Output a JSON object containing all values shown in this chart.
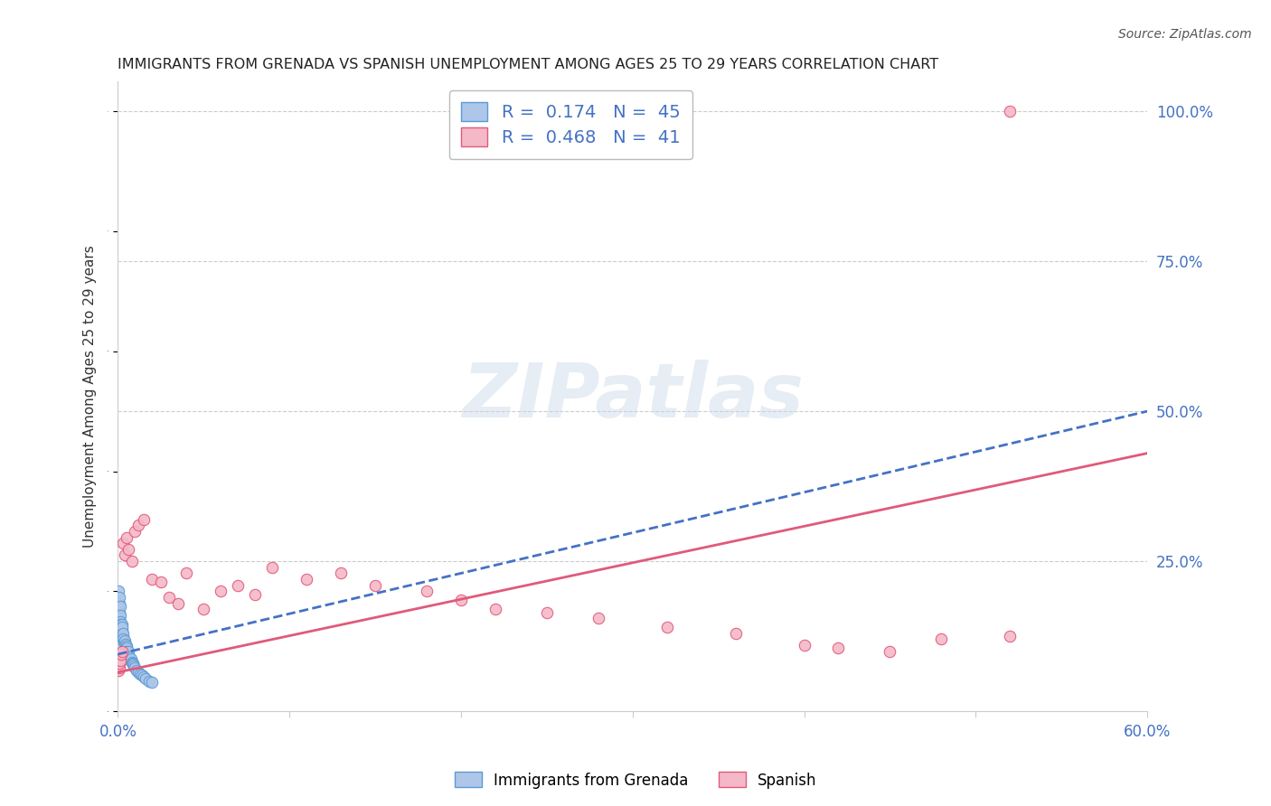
{
  "title": "IMMIGRANTS FROM GRENADA VS SPANISH UNEMPLOYMENT AMONG AGES 25 TO 29 YEARS CORRELATION CHART",
  "source": "Source: ZipAtlas.com",
  "ylabel": "Unemployment Among Ages 25 to 29 years",
  "xlim": [
    0.0,
    0.6
  ],
  "ylim": [
    0.0,
    1.05
  ],
  "xticks": [
    0.0,
    0.1,
    0.2,
    0.3,
    0.4,
    0.5,
    0.6
  ],
  "xtick_labels": [
    "0.0%",
    "",
    "",
    "",
    "",
    "",
    "60.0%"
  ],
  "yticks": [
    0.0,
    0.25,
    0.5,
    0.75,
    1.0
  ],
  "ytick_labels": [
    "",
    "25.0%",
    "50.0%",
    "75.0%",
    "100.0%"
  ],
  "background_color": "#ffffff",
  "grid_color": "#cccccc",
  "watermark_text": "ZIPatlas",
  "grenada_color": "#aec6e8",
  "grenada_edge_color": "#5b9bd5",
  "spanish_color": "#f4b8c8",
  "spanish_edge_color": "#e05a7a",
  "trend_grenada_color": "#4472c4",
  "trend_spanish_color": "#e05a7a",
  "R_grenada": 0.174,
  "N_grenada": 45,
  "R_spanish": 0.468,
  "N_spanish": 41,
  "legend_R_color": "#4472c4",
  "title_color": "#222222",
  "ylabel_color": "#333333",
  "source_color": "#555555",
  "tick_label_color": "#4472c4",
  "grenada_x": [
    0.0003,
    0.0005,
    0.0007,
    0.0008,
    0.001,
    0.001,
    0.0012,
    0.0013,
    0.0015,
    0.0015,
    0.0017,
    0.0018,
    0.002,
    0.002,
    0.0022,
    0.0023,
    0.0025,
    0.0028,
    0.003,
    0.0032,
    0.0035,
    0.004,
    0.0042,
    0.0045,
    0.0048,
    0.005,
    0.0053,
    0.0055,
    0.006,
    0.0065,
    0.007,
    0.0075,
    0.008,
    0.0085,
    0.009,
    0.0095,
    0.01,
    0.011,
    0.012,
    0.013,
    0.014,
    0.015,
    0.016,
    0.018,
    0.02
  ],
  "grenada_y": [
    0.2,
    0.17,
    0.165,
    0.18,
    0.19,
    0.155,
    0.175,
    0.16,
    0.15,
    0.145,
    0.14,
    0.135,
    0.14,
    0.13,
    0.135,
    0.145,
    0.14,
    0.125,
    0.13,
    0.12,
    0.115,
    0.118,
    0.11,
    0.112,
    0.108,
    0.105,
    0.1,
    0.095,
    0.1,
    0.09,
    0.085,
    0.088,
    0.082,
    0.08,
    0.078,
    0.075,
    0.072,
    0.068,
    0.065,
    0.062,
    0.06,
    0.058,
    0.055,
    0.05,
    0.048
  ],
  "spanish_x": [
    0.0003,
    0.0005,
    0.0008,
    0.001,
    0.0015,
    0.002,
    0.0025,
    0.003,
    0.004,
    0.005,
    0.006,
    0.008,
    0.01,
    0.012,
    0.015,
    0.02,
    0.025,
    0.03,
    0.035,
    0.04,
    0.05,
    0.06,
    0.07,
    0.08,
    0.09,
    0.11,
    0.13,
    0.15,
    0.18,
    0.2,
    0.22,
    0.25,
    0.28,
    0.32,
    0.36,
    0.4,
    0.42,
    0.45,
    0.48,
    0.52,
    0.52
  ],
  "spanish_y": [
    0.075,
    0.068,
    0.072,
    0.08,
    0.085,
    0.095,
    0.1,
    0.28,
    0.26,
    0.29,
    0.27,
    0.25,
    0.3,
    0.31,
    0.32,
    0.22,
    0.215,
    0.19,
    0.18,
    0.23,
    0.17,
    0.2,
    0.21,
    0.195,
    0.24,
    0.22,
    0.23,
    0.21,
    0.2,
    0.185,
    0.17,
    0.165,
    0.155,
    0.14,
    0.13,
    0.11,
    0.105,
    0.1,
    0.12,
    0.125,
    1.0
  ],
  "trend_grenada_x_start": 0.0,
  "trend_grenada_x_end": 0.6,
  "trend_grenada_y_start": 0.095,
  "trend_grenada_y_end": 0.5,
  "trend_spanish_x_start": 0.0,
  "trend_spanish_x_end": 0.6,
  "trend_spanish_y_start": 0.065,
  "trend_spanish_y_end": 0.43
}
